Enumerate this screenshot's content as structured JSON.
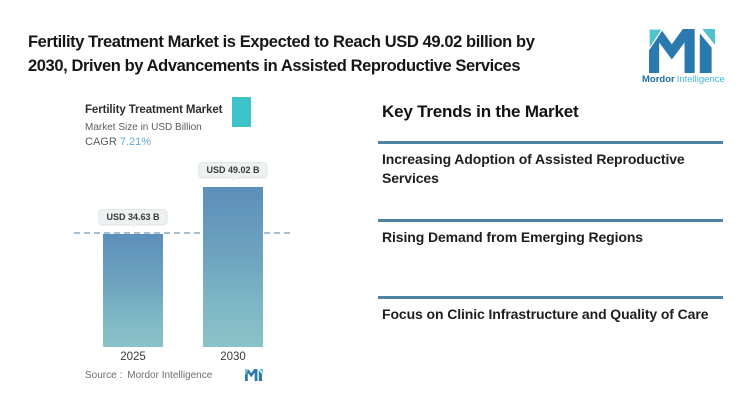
{
  "header": {
    "title_lines": [
      "Fertility Treatment Market is Expected to Reach USD 49.02 billion by",
      "2030, Driven by Advancements in Assisted Reproductive Services"
    ]
  },
  "brand": {
    "name_bold": "Mordor",
    "name_light": "Intelligence"
  },
  "chart": {
    "title": "Fertility Treatment Market",
    "subtitle": "Market Size in USD Billion",
    "cagr_label": "CAGR",
    "cagr_value": "7.21%",
    "source_label": "Source :",
    "source_value": "Mordor Intelligence"
  },
  "chart_data": {
    "type": "bar",
    "title": "Fertility Treatment Market",
    "ylabel": "Market Size in USD Billion",
    "categories": [
      "2025",
      "2030"
    ],
    "values": [
      34.63,
      49.02
    ],
    "value_labels": [
      "USD 34.63 B",
      "USD 49.02 B"
    ],
    "cagr": "7.21%",
    "ylim": [
      0,
      55
    ],
    "grid": false,
    "reference_line_at": 34.63,
    "legend": "none"
  },
  "trends": {
    "heading": "Key Trends in the Market",
    "items": [
      "Increasing Adoption of Assisted Reproductive Services",
      "Rising Demand from Emerging Regions",
      "Focus on Clinic Infrastructure and Quality of Care"
    ]
  },
  "colors": {
    "accent_teal": "#3cc4c9",
    "brand_blue": "#2a7ab0",
    "brand_teal": "#4fc4cf",
    "brand_text_blue": "#1c6ea4",
    "brand_text_light": "#49b5d6",
    "divider_blue": "#4f81a1",
    "cagr_blue": "#64aadb",
    "bar_gradient_top": "#5c8fba",
    "bar_gradient_bottom": "#8ac2c9",
    "dashed_line": "#a6bfd2",
    "pill_bg": "#edf1f2"
  }
}
